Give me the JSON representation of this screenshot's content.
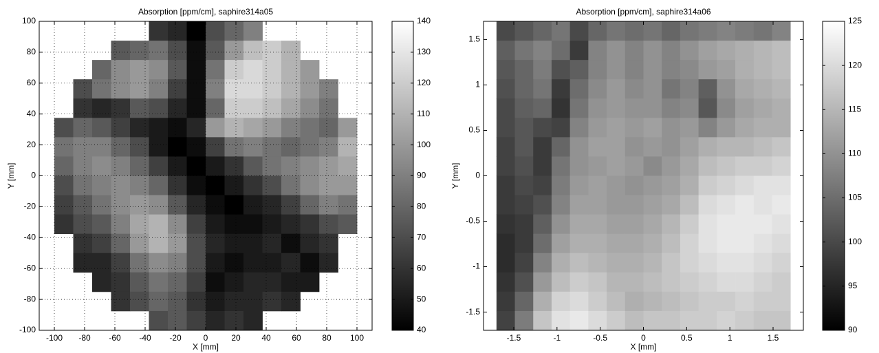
{
  "chart_data": [
    {
      "type": "heatmap",
      "title": "Absorption [ppm/cm], saphire314a05",
      "xlabel": "X [mm]",
      "ylabel": "Y [mm]",
      "colormap": "gray",
      "grid": true,
      "xlim": [
        -110,
        110
      ],
      "ylim": [
        -100,
        100
      ],
      "xticks": [
        -100,
        -80,
        -60,
        -40,
        -20,
        0,
        20,
        40,
        60,
        80,
        100
      ],
      "yticks": [
        -100,
        -80,
        -60,
        -40,
        -20,
        0,
        20,
        40,
        60,
        80,
        100
      ],
      "x": [
        -93.75,
        -81.25,
        -68.75,
        -56.25,
        -43.75,
        -31.25,
        -18.75,
        -6.25,
        6.25,
        18.75,
        31.25,
        43.75,
        56.25,
        68.75,
        81.25,
        93.75
      ],
      "y": [
        93.75,
        81.25,
        68.75,
        56.25,
        43.75,
        31.25,
        18.75,
        6.25,
        -6.25,
        -18.75,
        -31.25,
        -43.75,
        -56.25,
        -68.75,
        -81.25,
        -93.75
      ],
      "z": [
        [
          null,
          null,
          null,
          null,
          null,
          60,
          55,
          40,
          70,
          80,
          90,
          null,
          null,
          null,
          null,
          null
        ],
        [
          null,
          null,
          null,
          75,
          80,
          85,
          70,
          45,
          75,
          100,
          115,
          120,
          110,
          null,
          null,
          null
        ],
        [
          null,
          null,
          80,
          95,
          100,
          95,
          75,
          45,
          85,
          120,
          125,
          120,
          110,
          100,
          null,
          null
        ],
        [
          null,
          70,
          85,
          95,
          100,
          90,
          65,
          45,
          90,
          125,
          125,
          120,
          110,
          100,
          90,
          null
        ],
        [
          null,
          60,
          55,
          60,
          75,
          70,
          55,
          45,
          80,
          120,
          120,
          115,
          105,
          95,
          85,
          null
        ],
        [
          70,
          80,
          75,
          65,
          55,
          50,
          45,
          55,
          100,
          110,
          105,
          100,
          90,
          85,
          80,
          100
        ],
        [
          85,
          90,
          90,
          80,
          70,
          50,
          40,
          45,
          65,
          85,
          90,
          85,
          80,
          85,
          90,
          110
        ],
        [
          80,
          90,
          95,
          90,
          80,
          65,
          50,
          40,
          50,
          60,
          75,
          85,
          90,
          95,
          100,
          105
        ],
        [
          70,
          85,
          90,
          95,
          90,
          80,
          60,
          45,
          40,
          50,
          60,
          70,
          85,
          95,
          100,
          100
        ],
        [
          65,
          75,
          85,
          95,
          100,
          95,
          75,
          55,
          45,
          40,
          50,
          55,
          65,
          80,
          90,
          85
        ],
        [
          60,
          70,
          75,
          90,
          105,
          110,
          95,
          65,
          50,
          45,
          45,
          50,
          55,
          60,
          70,
          75
        ],
        [
          null,
          60,
          65,
          80,
          100,
          110,
          100,
          70,
          55,
          50,
          50,
          55,
          45,
          55,
          60,
          null
        ],
        [
          null,
          55,
          55,
          65,
          85,
          95,
          90,
          70,
          50,
          45,
          50,
          50,
          55,
          45,
          55,
          null
        ],
        [
          null,
          null,
          55,
          60,
          75,
          85,
          80,
          65,
          45,
          50,
          55,
          55,
          50,
          50,
          null,
          null
        ],
        [
          null,
          null,
          null,
          60,
          70,
          80,
          75,
          60,
          50,
          55,
          55,
          60,
          55,
          null,
          null,
          null
        ],
        [
          null,
          null,
          null,
          null,
          null,
          70,
          75,
          65,
          55,
          60,
          55,
          null,
          null,
          null,
          null,
          null
        ]
      ],
      "clim": [
        40,
        140
      ],
      "cticks": [
        40,
        50,
        60,
        70,
        80,
        90,
        100,
        110,
        120,
        130,
        140
      ]
    },
    {
      "type": "heatmap",
      "title": "Absorption [ppm/cm], saphire314a06",
      "xlabel": "X [mm]",
      "ylabel": "Y [mm]",
      "colormap": "gray",
      "grid": false,
      "xlim": [
        -1.85,
        1.85
      ],
      "ylim": [
        -1.7,
        1.7
      ],
      "xticks": [
        -1.5,
        -1,
        -0.5,
        0,
        0.5,
        1,
        1.5
      ],
      "yticks": [
        -1.5,
        -1,
        -0.5,
        0,
        0.5,
        1,
        1.5
      ],
      "x": [
        -1.59375,
        -1.38125,
        -1.16875,
        -0.95625,
        -0.74375,
        -0.53125,
        -0.31875,
        -0.10625,
        0.10625,
        0.31875,
        0.53125,
        0.74375,
        0.95625,
        1.16875,
        1.38125,
        1.59375
      ],
      "y": [
        1.59375,
        1.38125,
        1.16875,
        0.95625,
        0.74375,
        0.53125,
        0.31875,
        0.10625,
        -0.10625,
        -0.31875,
        -0.53125,
        -0.74375,
        -0.95625,
        -1.16875,
        -1.38125,
        -1.59375
      ],
      "z": [
        [
          100,
          102,
          104,
          106,
          100,
          104,
          106,
          105,
          106,
          104,
          106,
          107,
          108,
          107,
          106,
          108
        ],
        [
          103,
          106,
          108,
          105,
          98,
          108,
          110,
          108,
          110,
          108,
          110,
          112,
          113,
          114,
          115,
          116
        ],
        [
          102,
          104,
          107,
          101,
          103,
          108,
          110,
          108,
          110,
          108,
          109,
          111,
          112,
          114,
          115,
          116
        ],
        [
          101,
          104,
          106,
          98,
          105,
          109,
          111,
          109,
          110,
          106,
          108,
          103,
          110,
          113,
          114,
          115
        ],
        [
          100,
          103,
          104,
          97,
          106,
          110,
          111,
          110,
          110,
          108,
          109,
          102,
          109,
          112,
          113,
          114
        ],
        [
          100,
          102,
          100,
          99,
          108,
          111,
          112,
          111,
          112,
          110,
          111,
          108,
          111,
          113,
          114,
          114
        ],
        [
          99,
          102,
          98,
          104,
          110,
          112,
          112,
          110,
          111,
          110,
          112,
          114,
          115,
          115,
          116,
          117
        ],
        [
          99,
          101,
          98,
          106,
          110,
          111,
          112,
          111,
          109,
          111,
          113,
          116,
          117,
          118,
          118,
          119
        ],
        [
          98,
          100,
          99,
          107,
          111,
          112,
          111,
          110,
          111,
          112,
          114,
          118,
          119,
          120,
          121,
          121
        ],
        [
          98,
          99,
          101,
          108,
          112,
          112,
          111,
          111,
          112,
          113,
          116,
          120,
          121,
          122,
          121,
          122
        ],
        [
          97,
          98,
          103,
          110,
          113,
          113,
          112,
          112,
          113,
          115,
          118,
          121,
          122,
          122,
          122,
          121
        ],
        [
          96,
          98,
          105,
          112,
          114,
          114,
          113,
          113,
          114,
          116,
          119,
          121,
          122,
          122,
          121,
          120
        ],
        [
          96,
          99,
          108,
          114,
          116,
          115,
          114,
          114,
          115,
          117,
          119,
          120,
          121,
          121,
          120,
          119
        ],
        [
          97,
          101,
          111,
          116,
          118,
          117,
          115,
          115,
          116,
          117,
          118,
          119,
          120,
          120,
          119,
          118
        ],
        [
          98,
          104,
          114,
          119,
          120,
          118,
          116,
          114,
          115,
          116,
          117,
          118,
          118,
          119,
          118,
          118
        ],
        [
          99,
          107,
          117,
          121,
          122,
          120,
          118,
          116,
          117,
          117,
          118,
          118,
          119,
          118,
          117,
          117
        ]
      ],
      "clim": [
        90,
        125
      ],
      "cticks": [
        90,
        95,
        100,
        105,
        110,
        115,
        120,
        125
      ]
    }
  ]
}
